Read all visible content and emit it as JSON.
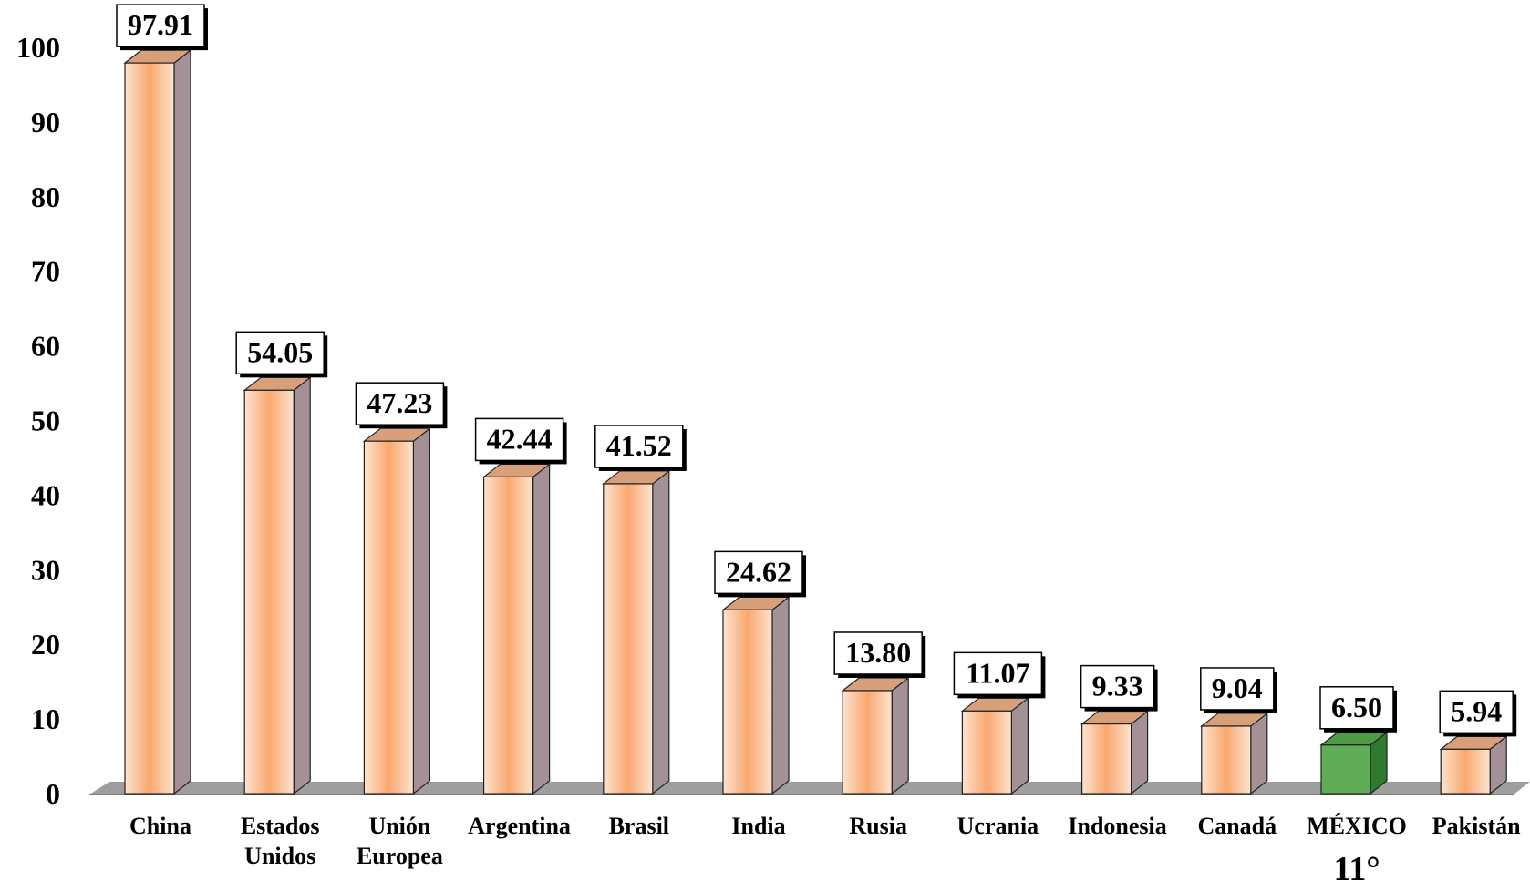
{
  "chart_data": {
    "type": "bar",
    "categories": [
      "China",
      "Estados Unidos",
      "Unión Europea",
      "Argentina",
      "Brasil",
      "India",
      "Rusia",
      "Ucrania",
      "Indonesia",
      "Canadá",
      "MÉXICO",
      "Pakistán"
    ],
    "category_lines": [
      [
        "China"
      ],
      [
        "Estados",
        "Unidos"
      ],
      [
        "Unión",
        "Europea"
      ],
      [
        "Argentina"
      ],
      [
        "Brasil"
      ],
      [
        "India"
      ],
      [
        "Rusia"
      ],
      [
        "Ucrania"
      ],
      [
        "Indonesia"
      ],
      [
        "Canadá"
      ],
      [
        "MÉXICO"
      ],
      [
        "Pakistán"
      ]
    ],
    "values": [
      97.91,
      54.05,
      47.23,
      42.44,
      41.52,
      24.62,
      13.8,
      11.07,
      9.33,
      9.04,
      6.5,
      5.94
    ],
    "value_labels": [
      "97.91",
      "54.05",
      "47.23",
      "42.44",
      "41.52",
      "24.62",
      "13.80",
      "11.07",
      "9.33",
      "9.04",
      "6.50",
      "5.94"
    ],
    "yticks": [
      "0",
      "10",
      "20",
      "30",
      "40",
      "50",
      "60",
      "70",
      "80",
      "90",
      "100"
    ],
    "ylim": [
      0,
      100
    ],
    "highlight_index": 10,
    "highlight_note": "11°",
    "grid": false,
    "colors": {
      "bar_edge": "#fde3d0",
      "bar_mid": "#f9a86e",
      "bar_side": "#a49196",
      "bar_top": "#d7a07a",
      "highlight_front": "#5fad56",
      "highlight_side": "#2f7a2e",
      "highlight_top": "#4e9a45",
      "floor": "#9e9e9e"
    }
  }
}
